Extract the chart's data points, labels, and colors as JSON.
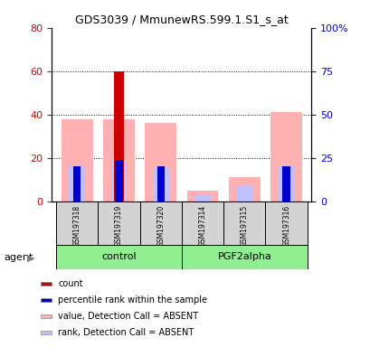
{
  "title": "GDS3039 / MmunewRS.599.1.S1_s_at",
  "samples": [
    "GSM197318",
    "GSM197319",
    "GSM197320",
    "GSM197314",
    "GSM197315",
    "GSM197316"
  ],
  "groups": [
    "control",
    "control",
    "control",
    "PGF2alpha",
    "PGF2alpha",
    "PGF2alpha"
  ],
  "group_labels": [
    "control",
    "PGF2alpha"
  ],
  "ylim_left": [
    0,
    80
  ],
  "ylim_right": [
    0,
    100
  ],
  "yticks_left": [
    0,
    20,
    40,
    60,
    80
  ],
  "yticks_right": [
    0,
    25,
    50,
    75,
    100
  ],
  "ytick_labels_right": [
    "0",
    "25",
    "50",
    "75",
    "100%"
  ],
  "bar_width": 0.35,
  "count_bars": {
    "GSM197319": 60
  },
  "percentile_bars": {
    "GSM197318": 20,
    "GSM197319": 24,
    "GSM197320": 20,
    "GSM197316": 20
  },
  "value_absent_bars": {
    "GSM197318": 38,
    "GSM197319": 38,
    "GSM197320": 36,
    "GSM197314": 5,
    "GSM197315": 11,
    "GSM197316": 41
  },
  "rank_absent_bars": {
    "GSM197318": 20,
    "GSM197319": 24,
    "GSM197320": 19,
    "GSM197314": 4,
    "GSM197315": 9,
    "GSM197316": 20
  },
  "count_color": "#cc0000",
  "percentile_color": "#0000cc",
  "value_absent_color": "#ffb0b0",
  "rank_absent_color": "#c0c0ff",
  "left_tick_color": "#cc0000",
  "right_tick_color": "#0000cc",
  "bg_color": "#ffffff",
  "group_bg": "#90ee90",
  "sample_bg": "#d3d3d3",
  "agent_label": "agent",
  "legend_items": [
    "count",
    "percentile rank within the sample",
    "value, Detection Call = ABSENT",
    "rank, Detection Call = ABSENT"
  ],
  "legend_colors": [
    "#cc0000",
    "#0000cc",
    "#ffb0b0",
    "#c0c0ff"
  ]
}
